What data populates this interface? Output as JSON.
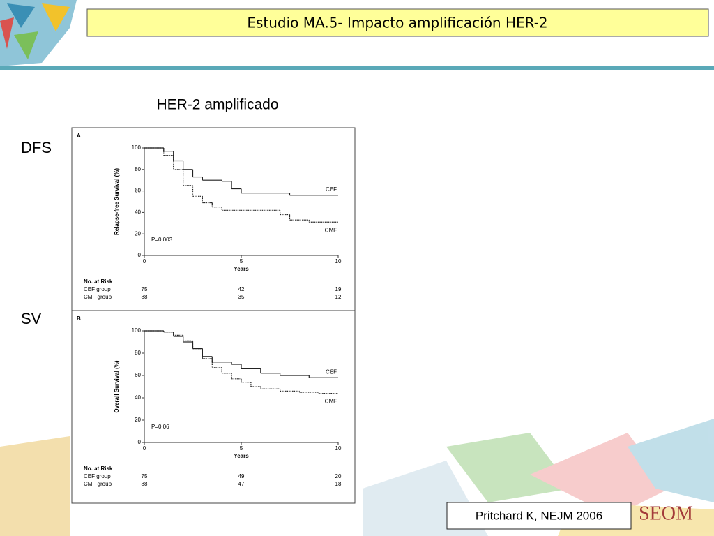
{
  "slide": {
    "title": "Estudio MA.5- Impacto amplificación HER-2",
    "subtitle": "HER-2 amplificado",
    "row_labels": [
      "DFS",
      "SV"
    ],
    "citation": "Pritchard K, NEJM 2006",
    "logo": "SEOM"
  },
  "chart_data": [
    {
      "type": "line",
      "panel_label": "A",
      "y_label": "Relapse-free Survival (%)",
      "x_label": "Years",
      "annotation": "P=0.003",
      "xlim": [
        0,
        10
      ],
      "ylim": [
        0,
        100
      ],
      "xticks": [
        0,
        5,
        10
      ],
      "yticks": [
        0,
        20,
        40,
        60,
        80,
        100
      ],
      "series": [
        {
          "name": "CEF",
          "color": "#222222",
          "line_style": "solid",
          "x": [
            0,
            1,
            1.5,
            2,
            2.5,
            3,
            4,
            4.5,
            5,
            7.5
          ],
          "values": [
            100,
            97,
            88,
            80,
            73,
            70,
            69,
            62,
            58,
            56
          ]
        },
        {
          "name": "CMF",
          "color": "#222222",
          "line_style": "dotted",
          "x": [
            0,
            1,
            1.5,
            2,
            2.5,
            3,
            3.5,
            4,
            6.5,
            7,
            7.5,
            8.5
          ],
          "values": [
            100,
            93,
            80,
            65,
            55,
            49,
            45,
            42,
            42,
            38,
            33,
            31
          ]
        }
      ],
      "risk_table": {
        "title": "No. at Risk",
        "rows": [
          {
            "label": "CEF group",
            "values": [
              75,
              42,
              19
            ]
          },
          {
            "label": "CMF group",
            "values": [
              88,
              35,
              12
            ]
          }
        ]
      }
    },
    {
      "type": "line",
      "panel_label": "B",
      "y_label": "Overall Survival (%)",
      "x_label": "Years",
      "annotation": "P=0.06",
      "xlim": [
        0,
        10
      ],
      "ylim": [
        0,
        100
      ],
      "xticks": [
        0,
        5,
        10
      ],
      "yticks": [
        0,
        20,
        40,
        60,
        80,
        100
      ],
      "series": [
        {
          "name": "CEF",
          "color": "#222222",
          "line_style": "solid",
          "x": [
            0,
            1,
            1.5,
            2,
            2.5,
            3,
            3.5,
            4.5,
            5,
            6,
            7,
            8.5
          ],
          "values": [
            100,
            99,
            95,
            90,
            84,
            77,
            72,
            70,
            66,
            62,
            60,
            58
          ]
        },
        {
          "name": "CMF",
          "color": "#222222",
          "line_style": "dotted",
          "x": [
            0,
            1,
            1.5,
            2,
            2.5,
            3,
            3.5,
            4,
            4.5,
            5,
            5.5,
            6,
            7,
            8,
            9
          ],
          "values": [
            100,
            99,
            96,
            91,
            84,
            75,
            67,
            62,
            57,
            54,
            50,
            48,
            46,
            45,
            44
          ]
        }
      ],
      "risk_table": {
        "title": "No. at Risk",
        "rows": [
          {
            "label": "CEF group",
            "values": [
              75,
              49,
              20
            ]
          },
          {
            "label": "CMF group",
            "values": [
              88,
              47,
              18
            ]
          }
        ]
      }
    }
  ]
}
